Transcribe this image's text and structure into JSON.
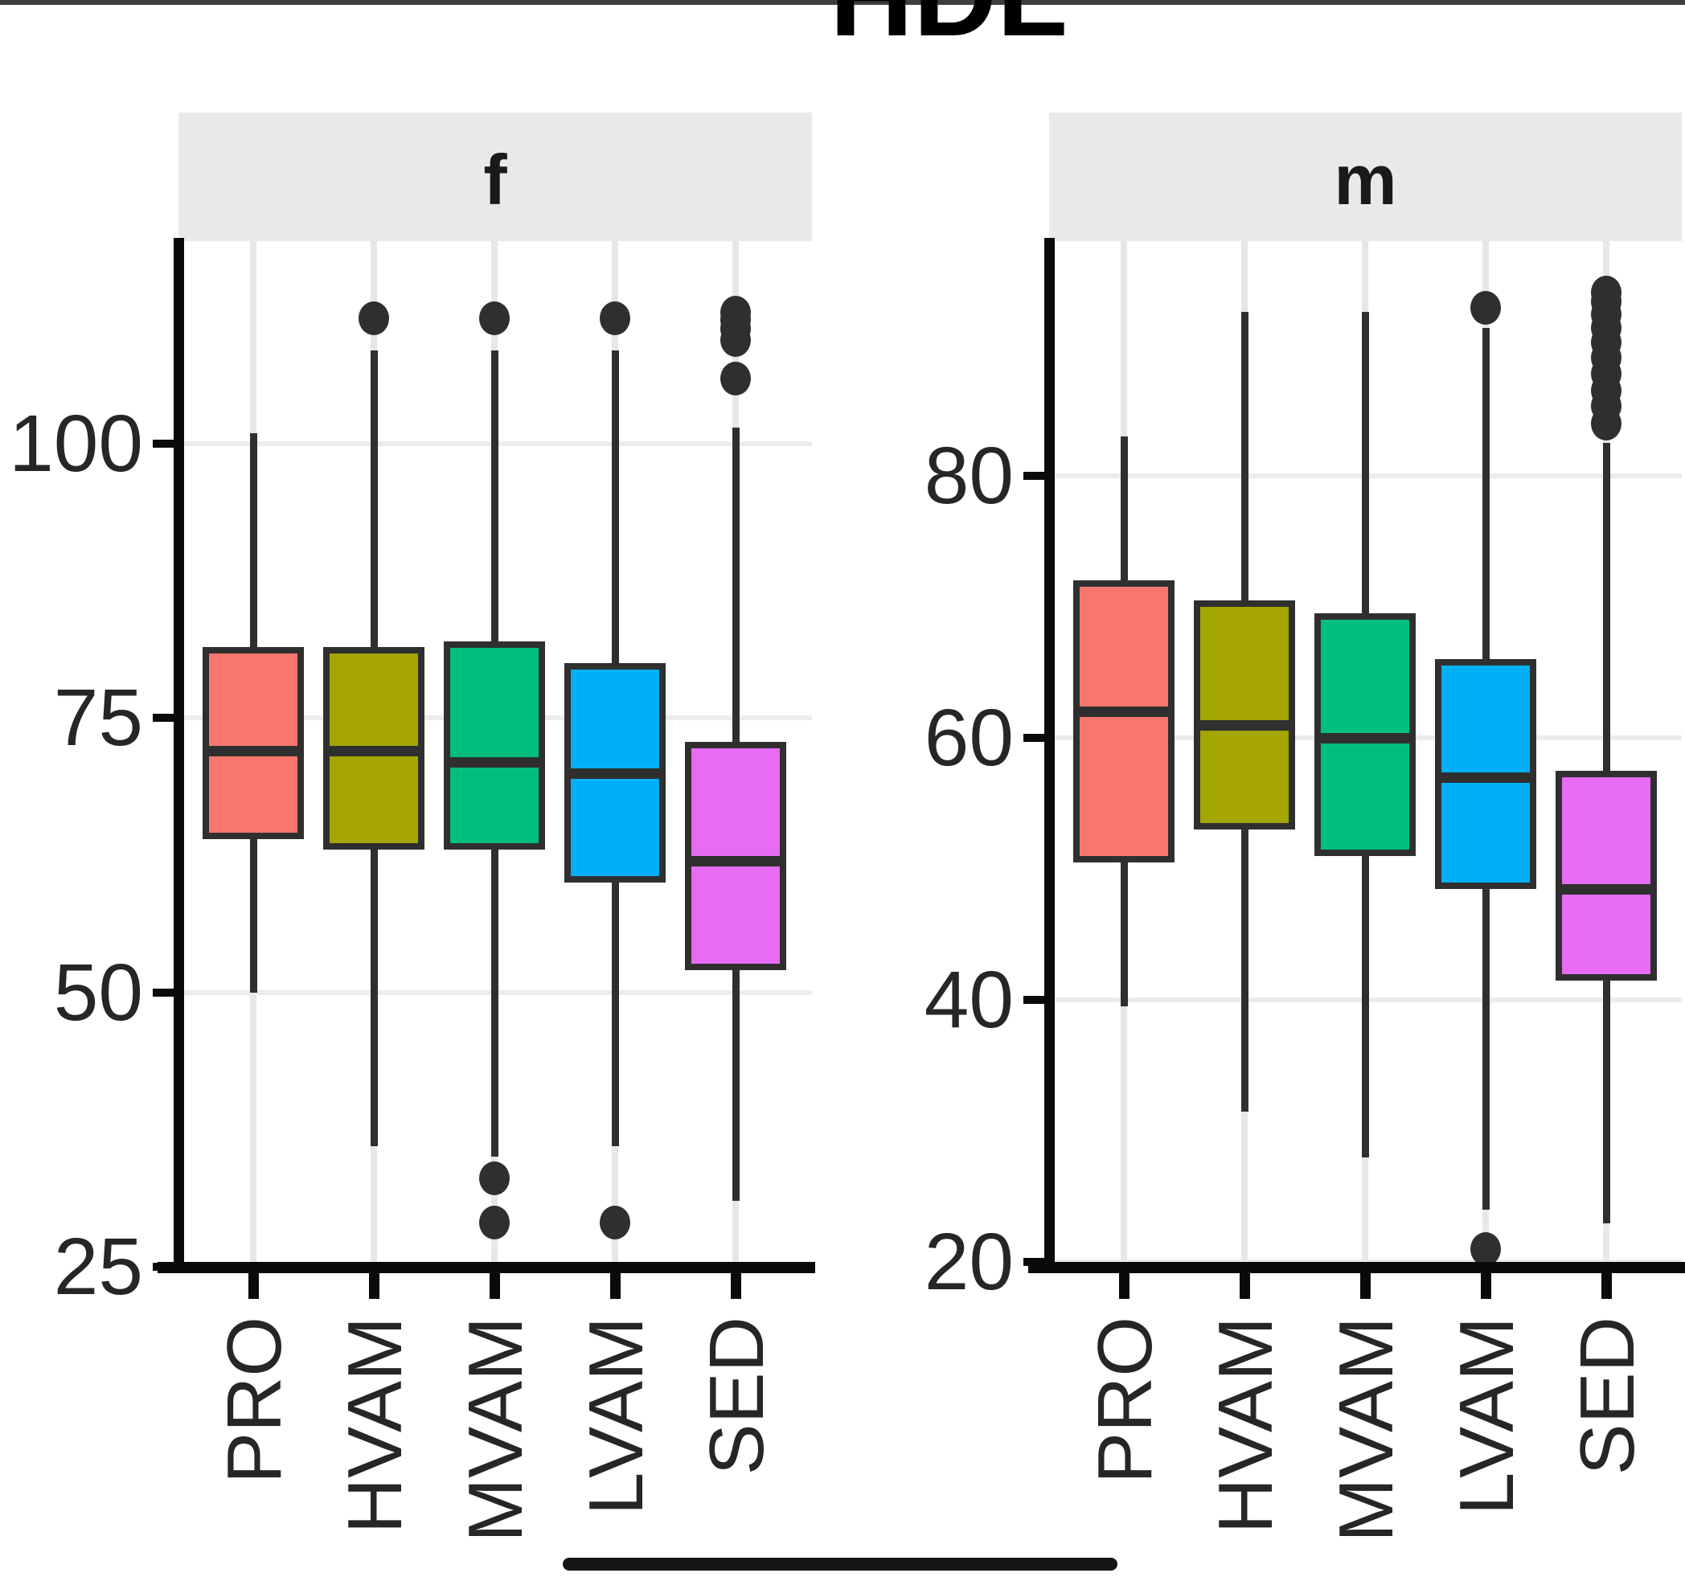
{
  "title": "HDL",
  "chart_data": {
    "type": "boxplot",
    "title": "HDL",
    "orientation": "vertical",
    "legend": "none",
    "x_label_rotation": 90,
    "categories": [
      "PRO",
      "HVAM",
      "MVAM",
      "LVAM",
      "SED"
    ],
    "colors": {
      "PRO": "#F8766D",
      "HVAM": "#A3A500",
      "MVAM": "#00BF7D",
      "LVAM": "#00B0F6",
      "SED": "#E76BF3"
    },
    "facets": [
      {
        "label": "f",
        "y_ticks": [
          25,
          50,
          75,
          100
        ],
        "ylim": [
          24.9,
          118.5
        ],
        "boxes": [
          {
            "category": "PRO",
            "whisker_low": 50,
            "q1": 64,
            "median": 72,
            "q3": 81.5,
            "whisker_high": 101,
            "outliers_low": [],
            "outliers_high": []
          },
          {
            "category": "HVAM",
            "whisker_low": 36,
            "q1": 63,
            "median": 72,
            "q3": 81.5,
            "whisker_high": 108.5,
            "outliers_low": [],
            "outliers_high": [
              111.5
            ]
          },
          {
            "category": "MVAM",
            "whisker_low": 35,
            "q1": 63,
            "median": 71,
            "q3": 82,
            "whisker_high": 108.5,
            "outliers_low": [
              33,
              29
            ],
            "outliers_high": [
              111.5
            ]
          },
          {
            "category": "LVAM",
            "whisker_low": 36,
            "q1": 60,
            "median": 70,
            "q3": 80,
            "whisker_high": 108.5,
            "outliers_low": [
              29
            ],
            "outliers_high": [
              111.5
            ]
          },
          {
            "category": "SED",
            "whisker_low": 31,
            "q1": 52,
            "median": 62,
            "q3": 72.8,
            "whisker_high": 101.5,
            "outliers_low": [],
            "outliers_high": [
              106,
              109.5,
              110.5,
              111.3,
              112
            ]
          }
        ]
      },
      {
        "label": "m",
        "y_ticks": [
          20,
          40,
          60,
          80
        ],
        "ylim": [
          19.6,
          97.9
        ],
        "boxes": [
          {
            "category": "PRO",
            "whisker_low": 39.5,
            "q1": 50.5,
            "median": 62,
            "q3": 72,
            "whisker_high": 83,
            "outliers_low": [],
            "outliers_high": []
          },
          {
            "category": "HVAM",
            "whisker_low": 31.5,
            "q1": 53,
            "median": 61,
            "q3": 70.5,
            "whisker_high": 92.5,
            "outliers_low": [],
            "outliers_high": []
          },
          {
            "category": "MVAM",
            "whisker_low": 28,
            "q1": 51,
            "median": 60,
            "q3": 69.5,
            "whisker_high": 92.5,
            "outliers_low": [],
            "outliers_high": []
          },
          {
            "category": "LVAM",
            "whisker_low": 24,
            "q1": 48.5,
            "median": 57,
            "q3": 66,
            "whisker_high": 91.3,
            "outliers_low": [
              21
            ],
            "outliers_high": [
              92.8
            ]
          },
          {
            "category": "SED",
            "whisker_low": 23,
            "q1": 41.5,
            "median": 48.5,
            "q3": 57.5,
            "whisker_high": 82.5,
            "outliers_low": [],
            "outliers_high": [
              84,
              85.3,
              86.5,
              87.8,
              89,
              90.2,
              91.3,
              92.3,
              93.3,
              94
            ]
          }
        ]
      }
    ]
  }
}
